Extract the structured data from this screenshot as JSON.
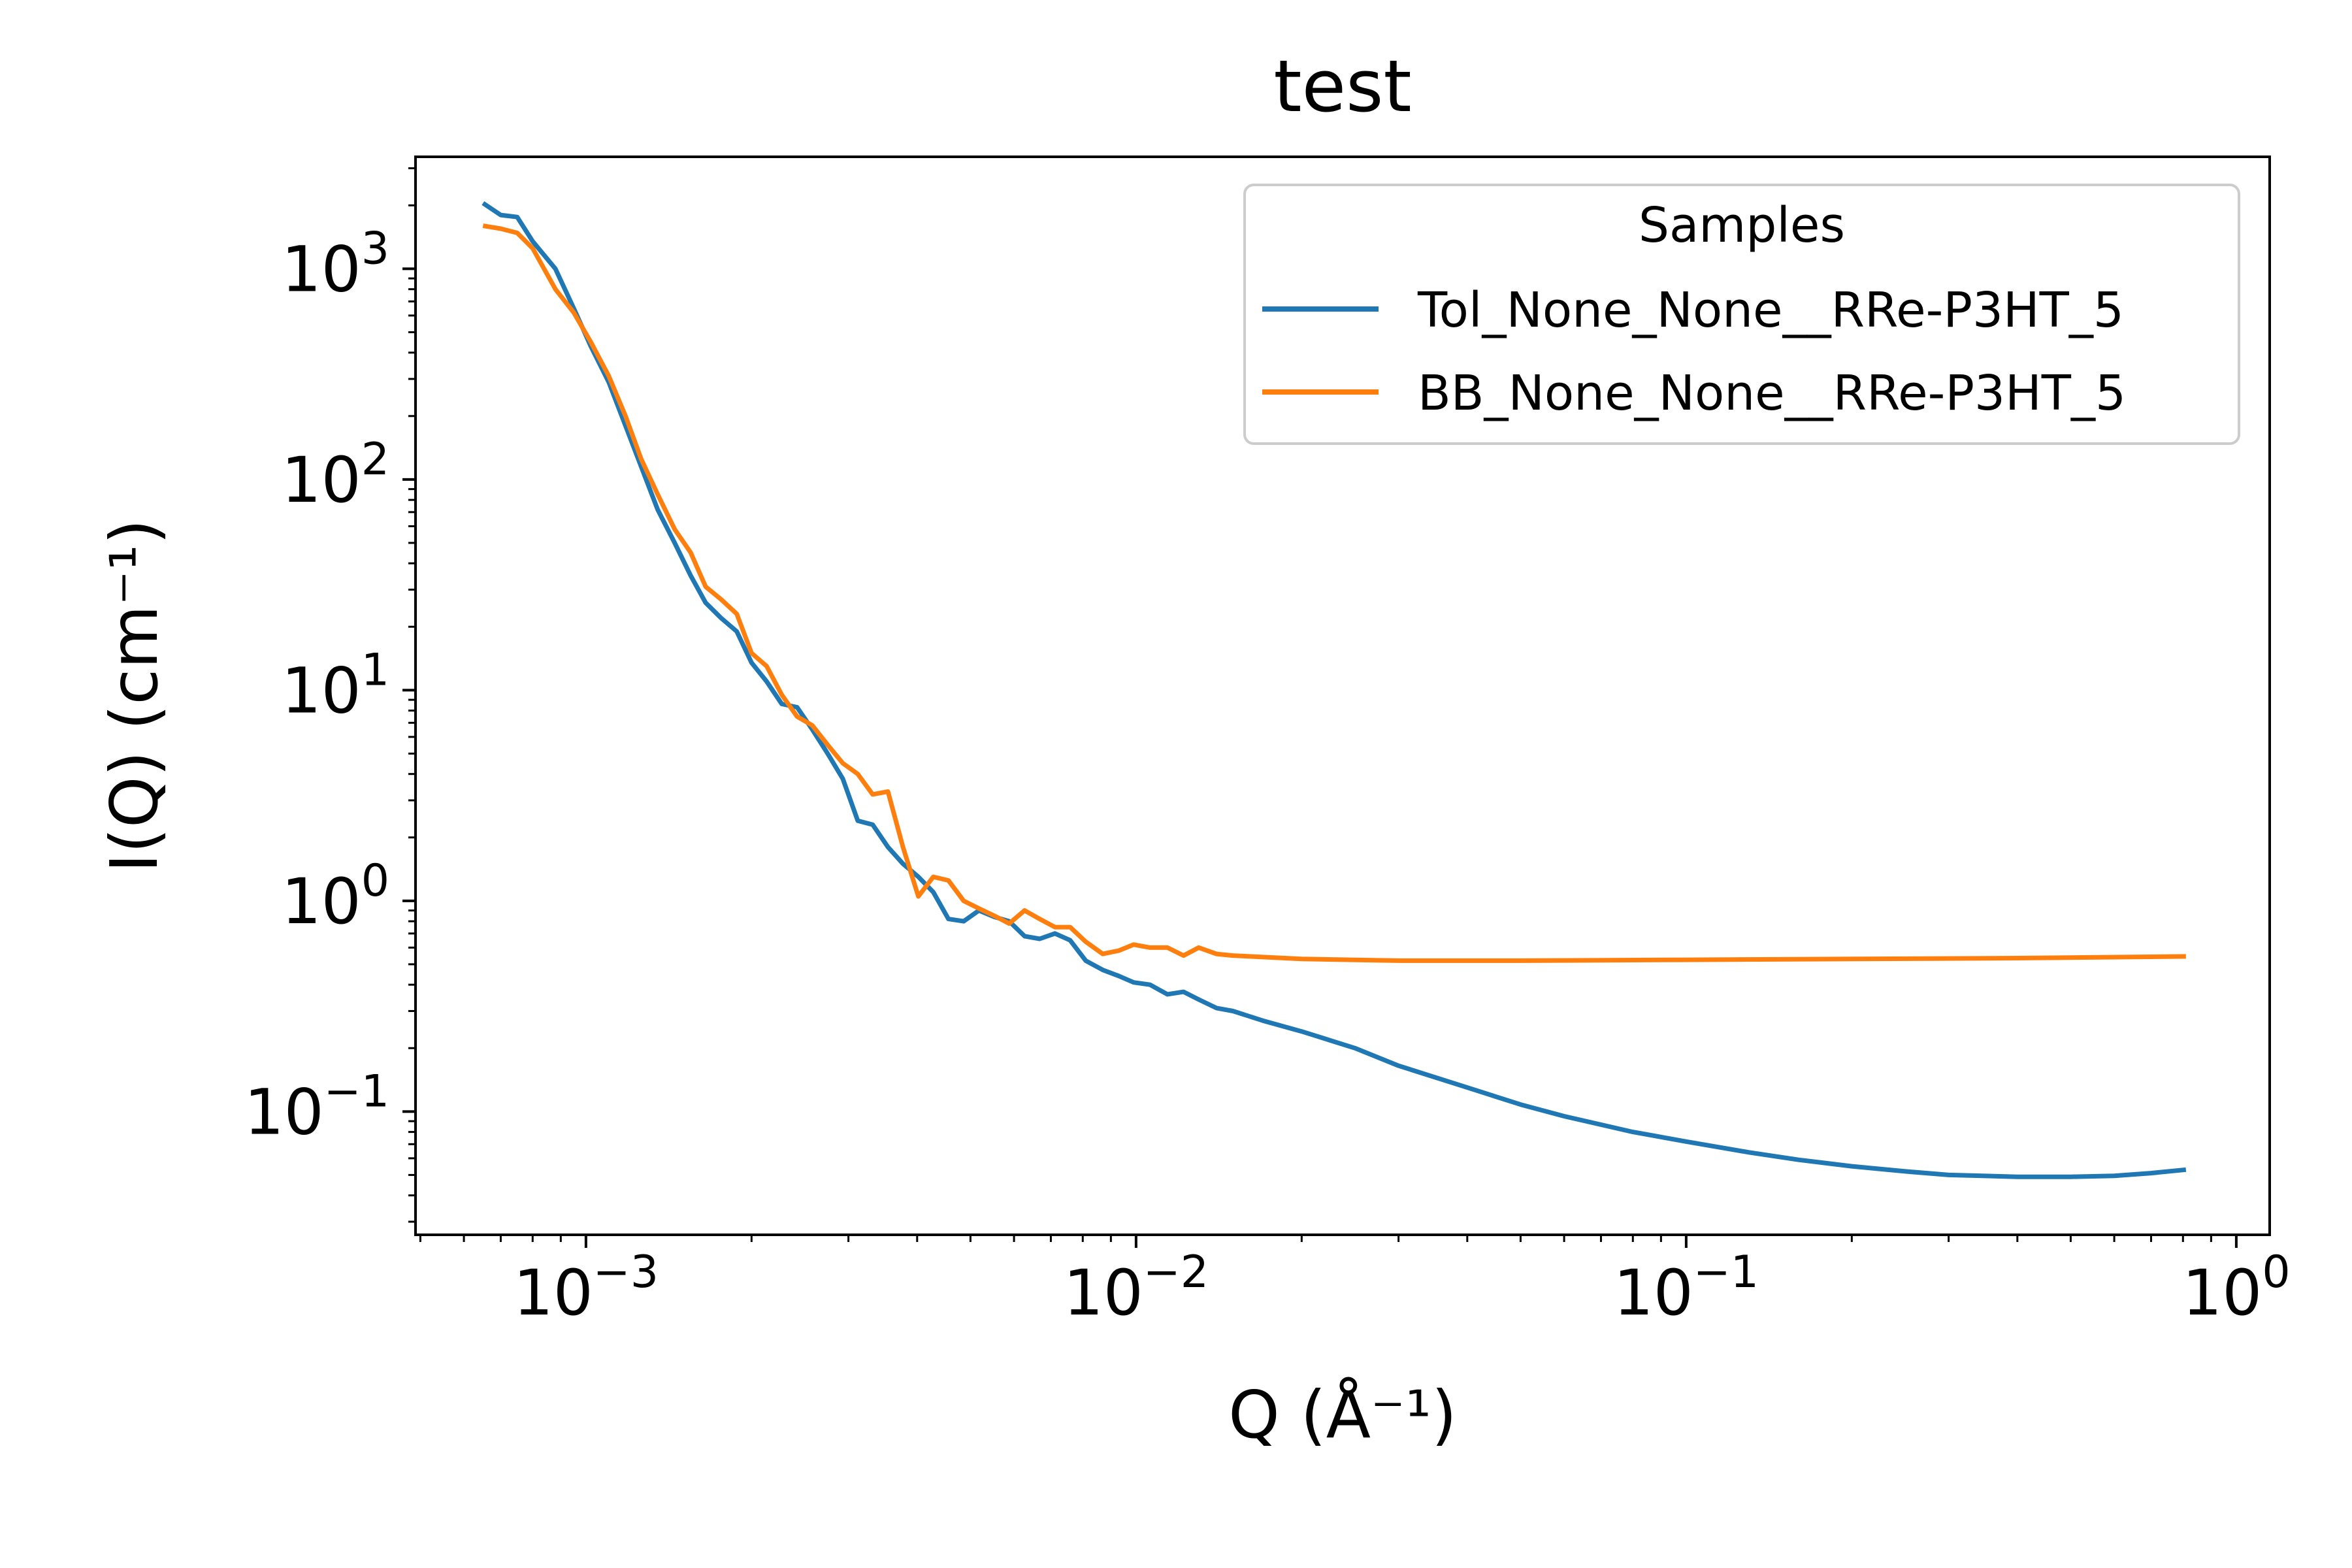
{
  "chart_data": {
    "type": "line",
    "title": "test",
    "xlabel": "Q (Å⁻¹)",
    "ylabel": "I(Q) (cm⁻¹)",
    "xscale": "log",
    "yscale": "log",
    "xlim": [
      0.00049,
      1.15
    ],
    "ylim": [
      0.026,
      3400
    ],
    "x_tick_labels": [
      {
        "value": 0.001,
        "base": "10",
        "exp": "−3"
      },
      {
        "value": 0.01,
        "base": "10",
        "exp": "−2"
      },
      {
        "value": 0.1,
        "base": "10",
        "exp": "−1"
      },
      {
        "value": 1,
        "base": "10",
        "exp": "0"
      }
    ],
    "y_tick_labels": [
      {
        "value": 0.1,
        "base": "10",
        "exp": "−1"
      },
      {
        "value": 1,
        "base": "10",
        "exp": "0"
      },
      {
        "value": 10,
        "base": "10",
        "exp": "1"
      },
      {
        "value": 100,
        "base": "10",
        "exp": "2"
      },
      {
        "value": 1000,
        "base": "10",
        "exp": "3"
      }
    ],
    "grid": false,
    "legend": {
      "title": "Samples",
      "placement": "upper right"
    },
    "series": [
      {
        "name": "Tol_None_None__RRe-P3HT_5",
        "color": "#1f77b4",
        "points": [
          [
            0.00065,
            2050
          ],
          [
            0.0007,
            1800
          ],
          [
            0.00075,
            1760
          ],
          [
            0.0008,
            1350
          ],
          [
            0.00088,
            1000
          ],
          [
            0.00095,
            650
          ],
          [
            0.00102,
            430
          ],
          [
            0.0011,
            290
          ],
          [
            0.00118,
            180
          ],
          [
            0.00126,
            115
          ],
          [
            0.00135,
            72
          ],
          [
            0.00145,
            50
          ],
          [
            0.00155,
            35
          ],
          [
            0.00165,
            26
          ],
          [
            0.00176,
            22
          ],
          [
            0.00188,
            19
          ],
          [
            0.002,
            13.5
          ],
          [
            0.00213,
            11
          ],
          [
            0.00227,
            8.6
          ],
          [
            0.00242,
            8.3
          ],
          [
            0.00258,
            6.5
          ],
          [
            0.00275,
            5.0
          ],
          [
            0.00293,
            3.8
          ],
          [
            0.00312,
            2.4
          ],
          [
            0.00332,
            2.3
          ],
          [
            0.00354,
            1.8
          ],
          [
            0.00377,
            1.5
          ],
          [
            0.00402,
            1.3
          ],
          [
            0.00428,
            1.1
          ],
          [
            0.00456,
            0.82
          ],
          [
            0.00486,
            0.8
          ],
          [
            0.00518,
            0.9
          ],
          [
            0.00552,
            0.84
          ],
          [
            0.00588,
            0.8
          ],
          [
            0.00627,
            0.68
          ],
          [
            0.00668,
            0.66
          ],
          [
            0.00712,
            0.7
          ],
          [
            0.00759,
            0.65
          ],
          [
            0.0081,
            0.52
          ],
          [
            0.0087,
            0.47
          ],
          [
            0.0093,
            0.44
          ],
          [
            0.0099,
            0.41
          ],
          [
            0.0106,
            0.4
          ],
          [
            0.0114,
            0.36
          ],
          [
            0.0122,
            0.37
          ],
          [
            0.013,
            0.34
          ],
          [
            0.014,
            0.31
          ],
          [
            0.015,
            0.3
          ],
          [
            0.017,
            0.27
          ],
          [
            0.02,
            0.24
          ],
          [
            0.025,
            0.2
          ],
          [
            0.03,
            0.165
          ],
          [
            0.04,
            0.13
          ],
          [
            0.05,
            0.108
          ],
          [
            0.06,
            0.095
          ],
          [
            0.08,
            0.08
          ],
          [
            0.1,
            0.072
          ],
          [
            0.13,
            0.064
          ],
          [
            0.16,
            0.059
          ],
          [
            0.2,
            0.055
          ],
          [
            0.25,
            0.052
          ],
          [
            0.3,
            0.05
          ],
          [
            0.4,
            0.049
          ],
          [
            0.5,
            0.049
          ],
          [
            0.6,
            0.0495
          ],
          [
            0.7,
            0.051
          ],
          [
            0.81,
            0.053
          ]
        ]
      },
      {
        "name": "BB_None_None__RRe-P3HT_5",
        "color": "#ff7f0e",
        "points": [
          [
            0.00065,
            1600
          ],
          [
            0.0007,
            1550
          ],
          [
            0.00075,
            1480
          ],
          [
            0.0008,
            1250
          ],
          [
            0.00088,
            800
          ],
          [
            0.00095,
            620
          ],
          [
            0.00102,
            450
          ],
          [
            0.0011,
            310
          ],
          [
            0.00118,
            200
          ],
          [
            0.00126,
            125
          ],
          [
            0.00135,
            85
          ],
          [
            0.00145,
            58
          ],
          [
            0.00155,
            45
          ],
          [
            0.00165,
            31
          ],
          [
            0.00176,
            27
          ],
          [
            0.00188,
            23
          ],
          [
            0.002,
            15
          ],
          [
            0.00213,
            13
          ],
          [
            0.00227,
            9.5
          ],
          [
            0.00242,
            7.5
          ],
          [
            0.00258,
            6.8
          ],
          [
            0.00275,
            5.5
          ],
          [
            0.00293,
            4.5
          ],
          [
            0.00312,
            4.0
          ],
          [
            0.00332,
            3.2
          ],
          [
            0.00354,
            3.3
          ],
          [
            0.00377,
            1.8
          ],
          [
            0.00402,
            1.05
          ],
          [
            0.00428,
            1.3
          ],
          [
            0.00456,
            1.25
          ],
          [
            0.00486,
            1.0
          ],
          [
            0.00518,
            0.92
          ],
          [
            0.00552,
            0.85
          ],
          [
            0.00588,
            0.78
          ],
          [
            0.00627,
            0.9
          ],
          [
            0.00668,
            0.82
          ],
          [
            0.00712,
            0.75
          ],
          [
            0.00759,
            0.75
          ],
          [
            0.0081,
            0.64
          ],
          [
            0.0087,
            0.56
          ],
          [
            0.0093,
            0.58
          ],
          [
            0.0099,
            0.62
          ],
          [
            0.0106,
            0.6
          ],
          [
            0.0114,
            0.6
          ],
          [
            0.0122,
            0.55
          ],
          [
            0.013,
            0.6
          ],
          [
            0.014,
            0.56
          ],
          [
            0.015,
            0.55
          ],
          [
            0.02,
            0.53
          ],
          [
            0.03,
            0.52
          ],
          [
            0.05,
            0.52
          ],
          [
            0.1,
            0.525
          ],
          [
            0.2,
            0.53
          ],
          [
            0.4,
            0.535
          ],
          [
            0.81,
            0.545
          ]
        ]
      }
    ]
  }
}
